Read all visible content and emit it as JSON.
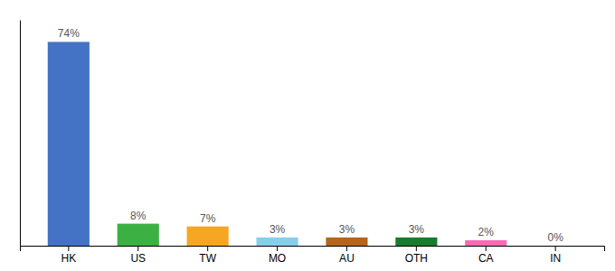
{
  "chart_data": {
    "type": "bar",
    "categories": [
      "HK",
      "US",
      "TW",
      "MO",
      "AU",
      "OTH",
      "CA",
      "IN"
    ],
    "values": [
      74,
      8,
      7,
      3,
      3,
      3,
      2,
      0
    ],
    "value_labels": [
      "74%",
      "8%",
      "7%",
      "3%",
      "3%",
      "3%",
      "2%",
      "0%"
    ],
    "colors": [
      "#4472C4",
      "#3CB043",
      "#F5A623",
      "#87CEEB",
      "#B5651D",
      "#1A7A2E",
      "#FF69B4",
      "#DDDDDD"
    ],
    "ylim": [
      0,
      82
    ],
    "data_labels": true,
    "tick_labels": "x"
  }
}
